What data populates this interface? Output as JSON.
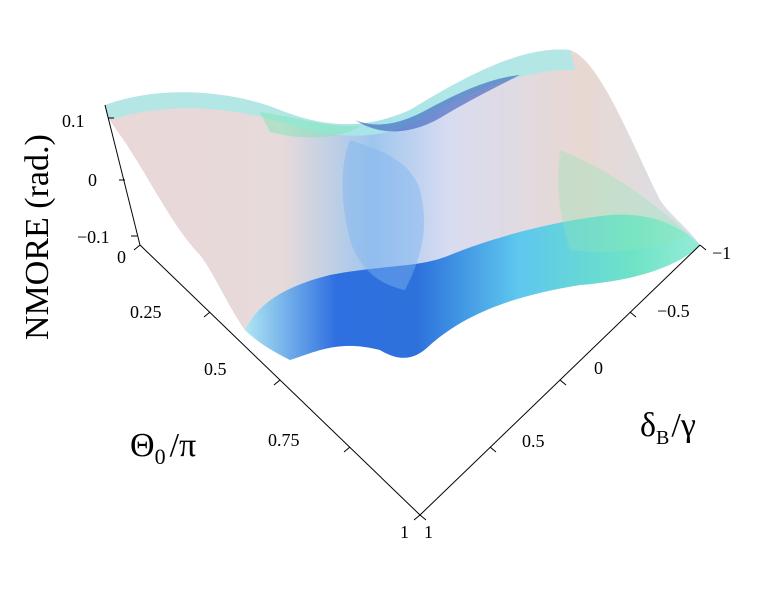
{
  "chart_data": {
    "type": "surface",
    "title": "",
    "zlabel": "NMORE (rad.)",
    "xlabel_main": "Θ",
    "xlabel_sub": "0",
    "xlabel_tail": "/π",
    "ylabel_main": "δ",
    "ylabel_sub": "B",
    "ylabel_tail": "/γ",
    "theta_ticks": [
      "0",
      "0.25",
      "0.5",
      "0.75",
      "1"
    ],
    "delta_ticks": [
      "1",
      "0.5",
      "0",
      "−0.5",
      "−1"
    ],
    "z_ticks": [
      "0.1",
      "0",
      "−0.1"
    ],
    "xlim": [
      0,
      1
    ],
    "ylim": [
      -1,
      1
    ],
    "zlim": [
      -0.1,
      0.1
    ],
    "grid": false
  }
}
